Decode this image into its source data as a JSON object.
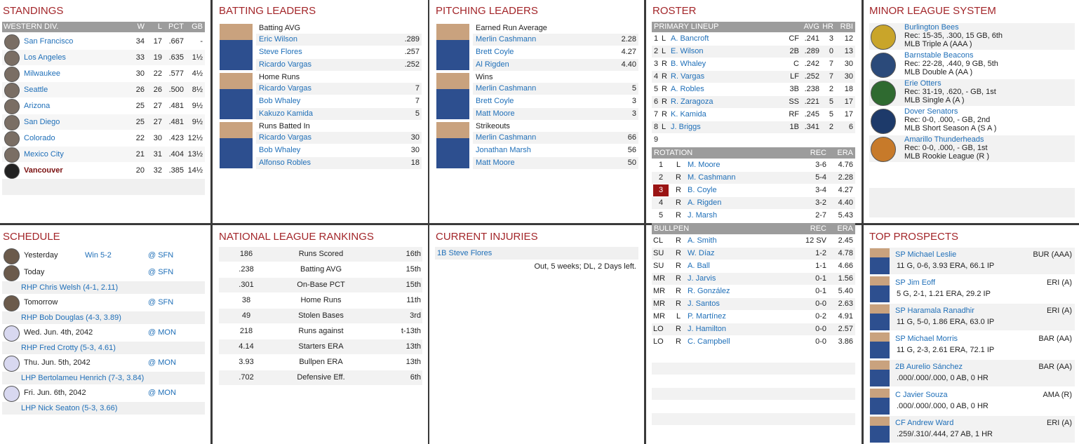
{
  "standings": {
    "title": "STANDINGS",
    "header": [
      "WESTERN DIV.",
      "W",
      "L",
      "PCT",
      "GB"
    ],
    "rows": [
      [
        "San Francisco",
        "34",
        "17",
        ".667",
        "-"
      ],
      [
        "Los Angeles",
        "33",
        "19",
        ".635",
        "1½"
      ],
      [
        "Milwaukee",
        "30",
        "22",
        ".577",
        "4½"
      ],
      [
        "Seattle",
        "26",
        "26",
        ".500",
        "8½"
      ],
      [
        "Arizona",
        "25",
        "27",
        ".481",
        "9½"
      ],
      [
        "San Diego",
        "25",
        "27",
        ".481",
        "9½"
      ],
      [
        "Colorado",
        "22",
        "30",
        ".423",
        "12½"
      ],
      [
        "Mexico City",
        "21",
        "31",
        ".404",
        "13½"
      ],
      [
        "Vancouver",
        "20",
        "32",
        ".385",
        "14½"
      ]
    ]
  },
  "batting": {
    "title": "BATTING LEADERS",
    "groups": [
      {
        "label": "Batting AVG",
        "rows": [
          [
            "Eric Wilson",
            ".289"
          ],
          [
            "Steve Flores",
            ".257"
          ],
          [
            "Ricardo Vargas",
            ".252"
          ]
        ]
      },
      {
        "label": "Home Runs",
        "rows": [
          [
            "Ricardo Vargas",
            "7"
          ],
          [
            "Bob Whaley",
            "7"
          ],
          [
            "Kakuzo Kamida",
            "5"
          ]
        ]
      },
      {
        "label": "Runs Batted In",
        "rows": [
          [
            "Ricardo Vargas",
            "30"
          ],
          [
            "Bob Whaley",
            "30"
          ],
          [
            "Alfonso Robles",
            "18"
          ]
        ]
      }
    ]
  },
  "pitching": {
    "title": "PITCHING LEADERS",
    "groups": [
      {
        "label": "Earned Run Average",
        "rows": [
          [
            "Merlin Cashmann",
            "2.28"
          ],
          [
            "Brett Coyle",
            "4.27"
          ],
          [
            "Al Rigden",
            "4.40"
          ]
        ]
      },
      {
        "label": "Wins",
        "rows": [
          [
            "Merlin Cashmann",
            "5"
          ],
          [
            "Brett Coyle",
            "3"
          ],
          [
            "Matt Moore",
            "3"
          ]
        ]
      },
      {
        "label": "Strikeouts",
        "rows": [
          [
            "Merlin Cashmann",
            "66"
          ],
          [
            "Jonathan Marsh",
            "56"
          ],
          [
            "Matt Moore",
            "50"
          ]
        ]
      }
    ]
  },
  "roster": {
    "title": "ROSTER",
    "lineup_header": [
      "PRIMARY LINEUP",
      "AVG",
      "HR",
      "RBI"
    ],
    "lineup": [
      [
        "1",
        "L",
        "A. Bancroft",
        "CF",
        ".241",
        "3",
        "12"
      ],
      [
        "2",
        "L",
        "E. Wilson",
        "2B",
        ".289",
        "0",
        "13"
      ],
      [
        "3",
        "R",
        "B. Whaley",
        "C",
        ".242",
        "7",
        "30"
      ],
      [
        "4",
        "R",
        "R. Vargas",
        "LF",
        ".252",
        "7",
        "30"
      ],
      [
        "5",
        "R",
        "A. Robles",
        "3B",
        ".238",
        "2",
        "18"
      ],
      [
        "6",
        "R",
        "R. Zaragoza",
        "SS",
        ".221",
        "5",
        "17"
      ],
      [
        "7",
        "R",
        "K. Kamida",
        "RF",
        ".245",
        "5",
        "17"
      ],
      [
        "8",
        "L",
        "J. Briggs",
        "1B",
        ".341",
        "2",
        "6"
      ],
      [
        "9"
      ]
    ],
    "rotation_header": [
      "ROTATION",
      "REC",
      "ERA"
    ],
    "rotation": [
      [
        "1",
        "L",
        "M. Moore",
        "3-6",
        "4.76"
      ],
      [
        "2",
        "R",
        "M. Cashmann",
        "5-4",
        "2.28"
      ],
      [
        "3",
        "R",
        "B. Coyle",
        "3-4",
        "4.27"
      ],
      [
        "4",
        "R",
        "A. Rigden",
        "3-2",
        "4.40"
      ],
      [
        "5",
        "R",
        "J. Marsh",
        "2-7",
        "5.43"
      ]
    ],
    "bullpen_header": [
      "BULLPEN",
      "REC",
      "ERA"
    ],
    "bullpen": [
      [
        "CL",
        "R",
        "A. Smith",
        "12 SV",
        "2.45"
      ],
      [
        "SU",
        "R",
        "W. Díaz",
        "1-2",
        "4.78"
      ],
      [
        "SU",
        "R",
        "A. Ball",
        "1-1",
        "4.66"
      ],
      [
        "MR",
        "R",
        "J. Jarvis",
        "0-1",
        "1.56"
      ],
      [
        "MR",
        "R",
        "R. González",
        "0-1",
        "5.40"
      ],
      [
        "MR",
        "R",
        "J. Santos",
        "0-0",
        "2.63"
      ],
      [
        "MR",
        "L",
        "P. Martínez",
        "0-2",
        "4.91"
      ],
      [
        "LO",
        "R",
        "J. Hamilton",
        "0-0",
        "2.57"
      ],
      [
        "LO",
        "R",
        "C. Campbell",
        "0-0",
        "3.86"
      ]
    ]
  },
  "minors": {
    "title": "MINOR LEAGUE SYSTEM",
    "rows": [
      [
        "Burlington Bees",
        "Rec: 15-35, .300, 15 GB, 6th",
        "MLB Triple A (AAA )"
      ],
      [
        "Barnstable Beacons",
        "Rec: 22-28, .440, 9 GB, 5th",
        "MLB Double A (AA )"
      ],
      [
        "Erie Otters",
        "Rec: 31-19, .620, - GB, 1st",
        "MLB Single A (A )"
      ],
      [
        "Dover Senators",
        "Rec: 0-0, .000, - GB, 2nd",
        "MLB Short Season A (S A )"
      ],
      [
        "Amarillo Thunderheads",
        "Rec: 0-0, .000, - GB, 1st",
        "MLB Rookie League (R )"
      ]
    ]
  },
  "schedule": {
    "title": "SCHEDULE",
    "items": [
      {
        "day": "Yesterday",
        "result": "Win 5-2",
        "opp": "@ SFN"
      },
      {
        "day": "Today",
        "opp": "@ SFN",
        "pitcher": "RHP Chris Welsh (4-1, 2.11)"
      },
      {
        "day": "Tomorrow",
        "opp": "@ SFN",
        "pitcher": "RHP Bob Douglas (4-3, 3.89)"
      },
      {
        "day": "Wed. Jun. 4th, 2042",
        "opp": "@ MON",
        "pitcher": "RHP Fred Crotty (5-3, 4.61)"
      },
      {
        "day": "Thu. Jun. 5th, 2042",
        "opp": "@ MON",
        "pitcher": "LHP Bertolameu Henrich (7-3, 3.84)"
      },
      {
        "day": "Fri. Jun. 6th, 2042",
        "opp": "@ MON",
        "pitcher": "LHP Nick Seaton (5-3, 3.66)"
      }
    ]
  },
  "rankings": {
    "title": "NATIONAL LEAGUE RANKINGS",
    "rows": [
      [
        "186",
        "Runs Scored",
        "16th"
      ],
      [
        ".238",
        "Batting AVG",
        "15th"
      ],
      [
        ".301",
        "On-Base PCT",
        "15th"
      ],
      [
        "38",
        "Home Runs",
        "11th"
      ],
      [
        "49",
        "Stolen Bases",
        "3rd"
      ],
      [
        "218",
        "Runs against",
        "t-13th"
      ],
      [
        "4.14",
        "Starters ERA",
        "13th"
      ],
      [
        "3.93",
        "Bullpen ERA",
        "13th"
      ],
      [
        ".702",
        "Defensive Eff.",
        "6th"
      ]
    ]
  },
  "injuries": {
    "title": "CURRENT INJURIES",
    "items": [
      {
        "name": "1B Steve Flores",
        "detail": "Out, 5 weeks; DL, 2 Days left."
      }
    ]
  },
  "prospects": {
    "title": "TOP PROSPECTS",
    "rows": [
      [
        "SP Michael Leslie",
        "BUR (AAA)",
        "11 G, 0-6, 3.93 ERA, 66.1 IP"
      ],
      [
        "SP Jim Eoff",
        "ERI (A)",
        "5 G, 2-1, 1.21 ERA, 29.2 IP"
      ],
      [
        "SP Haramala Ranadhir",
        "ERI (A)",
        "11 G, 5-0, 1.86 ERA, 63.0 IP"
      ],
      [
        "SP Michael Morris",
        "BAR (AA)",
        "11 G, 2-3, 2.61 ERA, 72.1 IP"
      ],
      [
        "2B Aurelio Sánchez",
        "BAR (AA)",
        ".000/.000/.000, 0 AB, 0 HR"
      ],
      [
        "C Javier Souza",
        "AMA (R)",
        ".000/.000/.000, 0 AB, 0 HR"
      ],
      [
        "CF Andrew Ward",
        "ERI (A)",
        ".259/.310/.444, 27 AB, 1 HR"
      ]
    ]
  }
}
